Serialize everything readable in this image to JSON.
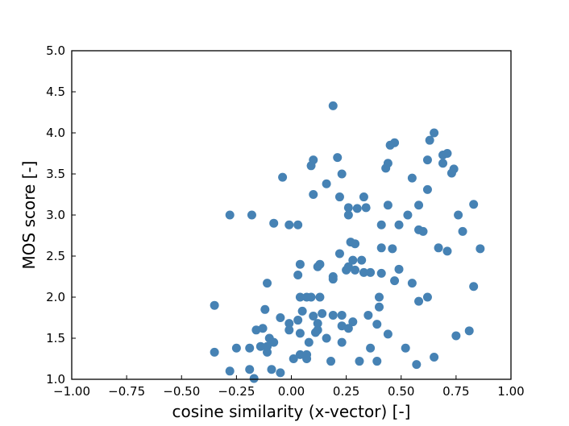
{
  "chart_data": {
    "type": "scatter",
    "xlabel": "cosine similarity (x-vector) [-]",
    "ylabel": "MOS score [-]",
    "xlim": [
      -1.0,
      1.0
    ],
    "ylim": [
      1.0,
      5.0
    ],
    "grid": false,
    "marker_color": "#4682b4",
    "x_ticks": [
      "−1.00",
      "−0.75",
      "−0.50",
      "−0.25",
      "0.00",
      "0.25",
      "0.50",
      "0.75",
      "1.00"
    ],
    "y_ticks": [
      "1.0",
      "1.5",
      "2.0",
      "2.5",
      "3.0",
      "3.5",
      "4.0",
      "4.5",
      "5.0"
    ],
    "x_tick_values": [
      -1.0,
      -0.75,
      -0.5,
      -0.25,
      0.0,
      0.25,
      0.5,
      0.75,
      1.0
    ],
    "y_tick_values": [
      1.0,
      1.5,
      2.0,
      2.5,
      3.0,
      3.5,
      4.0,
      4.5,
      5.0
    ],
    "points": [
      {
        "x": 0.19,
        "y": 4.33
      },
      {
        "x": 0.65,
        "y": 4.0
      },
      {
        "x": 0.63,
        "y": 3.91
      },
      {
        "x": 0.47,
        "y": 3.88
      },
      {
        "x": 0.45,
        "y": 3.85
      },
      {
        "x": 0.71,
        "y": 3.75
      },
      {
        "x": 0.69,
        "y": 3.73
      },
      {
        "x": 0.21,
        "y": 3.7
      },
      {
        "x": 0.1,
        "y": 3.67
      },
      {
        "x": 0.62,
        "y": 3.67
      },
      {
        "x": 0.69,
        "y": 3.63
      },
      {
        "x": 0.44,
        "y": 3.63
      },
      {
        "x": 0.09,
        "y": 3.6
      },
      {
        "x": 0.43,
        "y": 3.57
      },
      {
        "x": 0.74,
        "y": 3.56
      },
      {
        "x": 0.73,
        "y": 3.51
      },
      {
        "x": 0.23,
        "y": 3.5
      },
      {
        "x": -0.04,
        "y": 3.46
      },
      {
        "x": 0.55,
        "y": 3.45
      },
      {
        "x": 0.16,
        "y": 3.38
      },
      {
        "x": 0.62,
        "y": 3.31
      },
      {
        "x": 0.1,
        "y": 3.25
      },
      {
        "x": 0.22,
        "y": 3.22
      },
      {
        "x": 0.33,
        "y": 3.22
      },
      {
        "x": 0.83,
        "y": 3.13
      },
      {
        "x": 0.44,
        "y": 3.12
      },
      {
        "x": 0.58,
        "y": 3.12
      },
      {
        "x": 0.26,
        "y": 3.09
      },
      {
        "x": 0.3,
        "y": 3.08
      },
      {
        "x": 0.34,
        "y": 3.09
      },
      {
        "x": -0.28,
        "y": 3.0
      },
      {
        "x": -0.18,
        "y": 3.0
      },
      {
        "x": 0.26,
        "y": 3.0
      },
      {
        "x": 0.53,
        "y": 3.0
      },
      {
        "x": 0.76,
        "y": 3.0
      },
      {
        "x": -0.08,
        "y": 2.9
      },
      {
        "x": -0.01,
        "y": 2.88
      },
      {
        "x": 0.03,
        "y": 2.88
      },
      {
        "x": 0.41,
        "y": 2.88
      },
      {
        "x": 0.49,
        "y": 2.88
      },
      {
        "x": 0.58,
        "y": 2.82
      },
      {
        "x": 0.6,
        "y": 2.8
      },
      {
        "x": 0.78,
        "y": 2.8
      },
      {
        "x": 0.27,
        "y": 2.67
      },
      {
        "x": 0.29,
        "y": 2.65
      },
      {
        "x": 0.41,
        "y": 2.6
      },
      {
        "x": 0.46,
        "y": 2.59
      },
      {
        "x": 0.67,
        "y": 2.6
      },
      {
        "x": 0.86,
        "y": 2.59
      },
      {
        "x": 0.71,
        "y": 2.56
      },
      {
        "x": 0.22,
        "y": 2.53
      },
      {
        "x": 0.28,
        "y": 2.45
      },
      {
        "x": 0.32,
        "y": 2.45
      },
      {
        "x": 0.04,
        "y": 2.4
      },
      {
        "x": 0.13,
        "y": 2.4
      },
      {
        "x": 0.12,
        "y": 2.37
      },
      {
        "x": 0.26,
        "y": 2.37
      },
      {
        "x": 0.25,
        "y": 2.33
      },
      {
        "x": 0.29,
        "y": 2.33
      },
      {
        "x": 0.49,
        "y": 2.34
      },
      {
        "x": 0.33,
        "y": 2.3
      },
      {
        "x": 0.36,
        "y": 2.3
      },
      {
        "x": 0.41,
        "y": 2.29
      },
      {
        "x": 0.03,
        "y": 2.27
      },
      {
        "x": 0.19,
        "y": 2.25
      },
      {
        "x": 0.19,
        "y": 2.22
      },
      {
        "x": 0.47,
        "y": 2.2
      },
      {
        "x": -0.11,
        "y": 2.17
      },
      {
        "x": 0.55,
        "y": 2.17
      },
      {
        "x": 0.83,
        "y": 2.13
      },
      {
        "x": 0.04,
        "y": 2.0
      },
      {
        "x": 0.07,
        "y": 2.0
      },
      {
        "x": 0.09,
        "y": 2.0
      },
      {
        "x": 0.13,
        "y": 2.0
      },
      {
        "x": 0.4,
        "y": 2.0
      },
      {
        "x": 0.62,
        "y": 2.0
      },
      {
        "x": 0.58,
        "y": 1.95
      },
      {
        "x": -0.35,
        "y": 1.9
      },
      {
        "x": 0.4,
        "y": 1.88
      },
      {
        "x": -0.12,
        "y": 1.85
      },
      {
        "x": 0.05,
        "y": 1.83
      },
      {
        "x": 0.14,
        "y": 1.8
      },
      {
        "x": 0.19,
        "y": 1.78
      },
      {
        "x": 0.23,
        "y": 1.78
      },
      {
        "x": 0.35,
        "y": 1.78
      },
      {
        "x": 0.1,
        "y": 1.77
      },
      {
        "x": -0.05,
        "y": 1.75
      },
      {
        "x": 0.03,
        "y": 1.72
      },
      {
        "x": 0.28,
        "y": 1.7
      },
      {
        "x": -0.01,
        "y": 1.68
      },
      {
        "x": 0.12,
        "y": 1.68
      },
      {
        "x": 0.39,
        "y": 1.67
      },
      {
        "x": 0.23,
        "y": 1.65
      },
      {
        "x": 0.26,
        "y": 1.62
      },
      {
        "x": -0.13,
        "y": 1.62
      },
      {
        "x": -0.16,
        "y": 1.6
      },
      {
        "x": -0.01,
        "y": 1.6
      },
      {
        "x": 0.12,
        "y": 1.6
      },
      {
        "x": 0.81,
        "y": 1.59
      },
      {
        "x": 0.11,
        "y": 1.57
      },
      {
        "x": 0.04,
        "y": 1.56
      },
      {
        "x": 0.44,
        "y": 1.55
      },
      {
        "x": 0.75,
        "y": 1.53
      },
      {
        "x": -0.1,
        "y": 1.5
      },
      {
        "x": 0.16,
        "y": 1.5
      },
      {
        "x": 0.23,
        "y": 1.45
      },
      {
        "x": 0.08,
        "y": 1.45
      },
      {
        "x": -0.08,
        "y": 1.45
      },
      {
        "x": -0.14,
        "y": 1.4
      },
      {
        "x": -0.11,
        "y": 1.4
      },
      {
        "x": -0.25,
        "y": 1.38
      },
      {
        "x": -0.19,
        "y": 1.38
      },
      {
        "x": 0.36,
        "y": 1.38
      },
      {
        "x": 0.52,
        "y": 1.38
      },
      {
        "x": -0.35,
        "y": 1.33
      },
      {
        "x": -0.11,
        "y": 1.33
      },
      {
        "x": 0.04,
        "y": 1.3
      },
      {
        "x": 0.07,
        "y": 1.3
      },
      {
        "x": 0.65,
        "y": 1.27
      },
      {
        "x": 0.01,
        "y": 1.25
      },
      {
        "x": 0.07,
        "y": 1.25
      },
      {
        "x": 0.18,
        "y": 1.22
      },
      {
        "x": 0.31,
        "y": 1.22
      },
      {
        "x": 0.39,
        "y": 1.22
      },
      {
        "x": 0.57,
        "y": 1.18
      },
      {
        "x": -0.19,
        "y": 1.12
      },
      {
        "x": -0.28,
        "y": 1.1
      },
      {
        "x": -0.09,
        "y": 1.12
      },
      {
        "x": -0.05,
        "y": 1.08
      },
      {
        "x": -0.17,
        "y": 1.01
      }
    ]
  }
}
